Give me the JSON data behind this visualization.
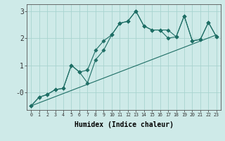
{
  "xlabel": "Humidex (Indice chaleur)",
  "bg_color": "#ceeae8",
  "grid_color": "#a8d4d0",
  "line_color": "#1e6e65",
  "xlim": [
    -0.5,
    23.5
  ],
  "ylim": [
    -0.65,
    3.25
  ],
  "x_ticks": [
    0,
    1,
    2,
    3,
    4,
    5,
    6,
    7,
    8,
    9,
    10,
    11,
    12,
    13,
    14,
    15,
    16,
    17,
    18,
    19,
    20,
    21,
    22,
    23
  ],
  "y_ticks": [
    0,
    1,
    2,
    3
  ],
  "y_tick_labels": [
    "-0",
    "1",
    "2",
    "3"
  ],
  "line1_x": [
    0,
    1,
    2,
    3,
    4,
    5,
    6,
    7,
    8,
    9,
    10,
    11,
    12,
    13,
    14,
    15,
    16,
    17,
    18,
    19,
    20,
    21,
    22,
    23
  ],
  "line1_y": [
    -0.5,
    -0.18,
    -0.08,
    0.1,
    0.15,
    1.0,
    0.75,
    0.82,
    1.55,
    1.9,
    2.12,
    2.55,
    2.62,
    3.0,
    2.45,
    2.3,
    2.3,
    2.3,
    2.05,
    2.82,
    1.9,
    1.95,
    2.58,
    2.05
  ],
  "line2_x": [
    0,
    1,
    2,
    3,
    4,
    5,
    6,
    7,
    8,
    9,
    10,
    11,
    12,
    13,
    14,
    15,
    16,
    17,
    18,
    19,
    20,
    21,
    22,
    23
  ],
  "line2_y": [
    -0.5,
    -0.18,
    -0.08,
    0.1,
    0.15,
    1.0,
    0.75,
    0.35,
    1.2,
    1.55,
    2.12,
    2.55,
    2.62,
    3.0,
    2.45,
    2.3,
    2.3,
    2.0,
    2.05,
    2.82,
    1.9,
    1.95,
    2.58,
    2.05
  ],
  "line3_x": [
    0,
    23
  ],
  "line3_y": [
    -0.5,
    2.12
  ]
}
